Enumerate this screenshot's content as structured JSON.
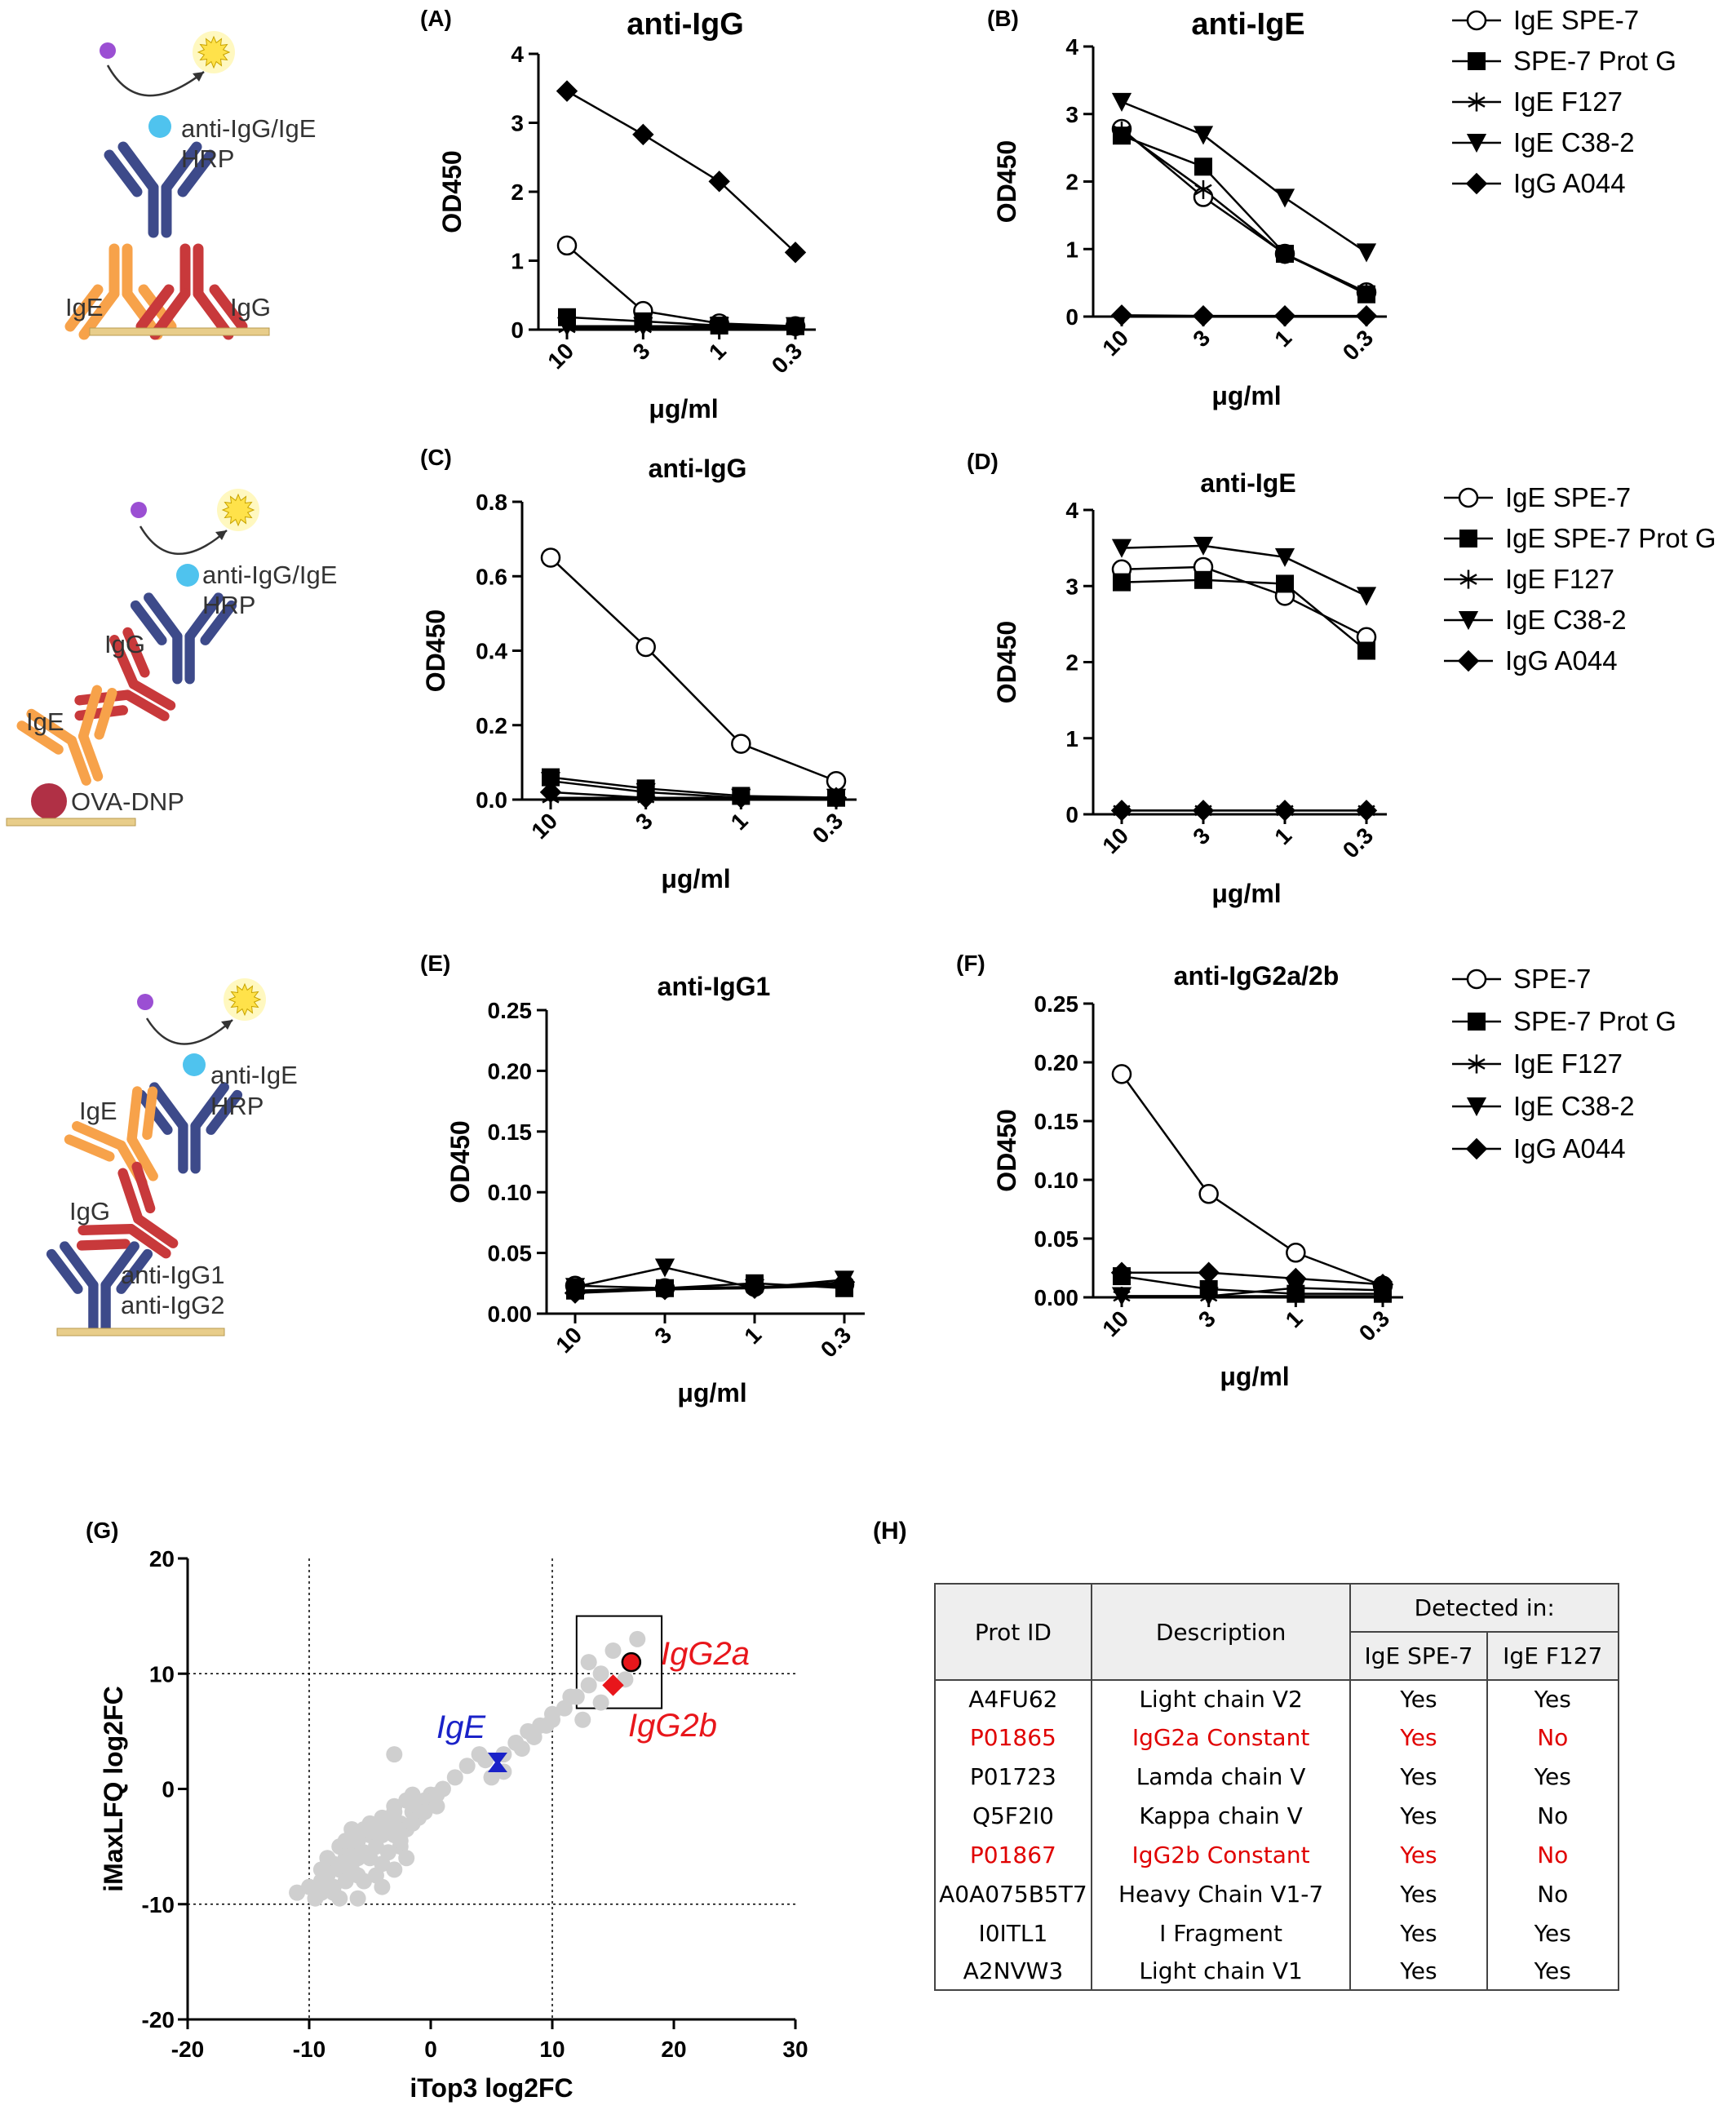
{
  "colors": {
    "red": "#e8161b",
    "blue": "#1a22c8",
    "grey": "#cfcfcf",
    "orange": "#f7a24a",
    "darkred": "#c8393b",
    "navy": "#3d4a8a",
    "cyan": "#4fc3ee",
    "purple": "#9b4fd3",
    "maroon": "#b03045",
    "gold": "#e8cd8a",
    "sun": "#ffe24a"
  },
  "schematics": [
    {
      "labels": [
        "anti-IgG/IgE",
        "HRP",
        "IgE",
        "IgG"
      ]
    },
    {
      "labels": [
        "anti-IgG/IgE",
        "HRP",
        "IgG",
        "IgE",
        "OVA-DNP"
      ]
    },
    {
      "labels": [
        "anti-IgE",
        "HRP",
        "IgE",
        "IgG",
        "anti-IgG1",
        "anti-IgG2"
      ]
    }
  ],
  "legends": [
    [
      "IgE SPE-7",
      "SPE-7 Prot G",
      "IgE F127",
      "IgE C38-2",
      "IgG A044"
    ],
    [
      "IgE SPE-7",
      "IgE SPE-7 Prot G",
      "IgE F127",
      "IgE C38-2",
      "IgG A044"
    ],
    [
      "SPE-7",
      "SPE-7 Prot G",
      "IgE F127",
      "IgE C38-2",
      "IgG A044"
    ]
  ],
  "chart_data": [
    {
      "panel": "(A)",
      "type": "line",
      "title": "anti-IgG",
      "xlabel": "μg/ml",
      "ylabel": "OD450",
      "categories": [
        "10",
        "3",
        "1",
        "0.3"
      ],
      "ylim": [
        0,
        4
      ],
      "yticks": [
        "0",
        "1",
        "2",
        "3",
        "4"
      ],
      "series": [
        {
          "name": "IgE SPE-7",
          "marker": "circle",
          "values": [
            1.22,
            0.27,
            0.09,
            0.05
          ]
        },
        {
          "name": "SPE-7 Prot G",
          "marker": "square",
          "values": [
            0.18,
            0.12,
            0.06,
            0.05
          ]
        },
        {
          "name": "IgE F127",
          "marker": "star",
          "values": [
            0.03,
            0.03,
            0.03,
            0.03
          ]
        },
        {
          "name": "IgE C38-2",
          "marker": "triangle",
          "values": [
            0.05,
            0.05,
            0.05,
            0.05
          ]
        },
        {
          "name": "IgG A044",
          "marker": "diamond",
          "values": [
            3.46,
            2.83,
            2.15,
            1.12
          ]
        }
      ]
    },
    {
      "panel": "(B)",
      "type": "line",
      "title": "anti-IgE",
      "xlabel": "μg/ml",
      "ylabel": "OD450",
      "categories": [
        "10",
        "3",
        "1",
        "0.3"
      ],
      "ylim": [
        0,
        4
      ],
      "yticks": [
        "0",
        "1",
        "2",
        "3",
        "4"
      ],
      "series": [
        {
          "name": "IgE SPE-7",
          "marker": "circle",
          "values": [
            2.78,
            1.77,
            0.93,
            0.36
          ]
        },
        {
          "name": "SPE-7 Prot G",
          "marker": "square",
          "values": [
            2.68,
            2.22,
            0.93,
            0.33
          ]
        },
        {
          "name": "IgE F127",
          "marker": "star",
          "values": [
            2.75,
            1.88,
            0.92,
            0.36
          ]
        },
        {
          "name": "IgE C38-2",
          "marker": "triangle",
          "values": [
            3.18,
            2.69,
            1.76,
            0.95
          ]
        },
        {
          "name": "IgG A044",
          "marker": "diamond",
          "values": [
            0.02,
            0.01,
            0.01,
            0.01
          ]
        }
      ]
    },
    {
      "panel": "(C)",
      "type": "line",
      "title": "anti-IgG",
      "xlabel": "μg/ml",
      "ylabel": "OD450",
      "categories": [
        "10",
        "3",
        "1",
        "0.3"
      ],
      "ylim": [
        0,
        0.8
      ],
      "yticks": [
        "0.0",
        "0.2",
        "0.4",
        "0.6",
        "0.8"
      ],
      "series": [
        {
          "name": "IgE SPE-7",
          "marker": "circle",
          "values": [
            0.65,
            0.41,
            0.15,
            0.05
          ]
        },
        {
          "name": "IgE SPE-7 Prot G",
          "marker": "square",
          "values": [
            0.06,
            0.03,
            0.01,
            0.005
          ]
        },
        {
          "name": "IgE F127",
          "marker": "star",
          "values": [
            0.005,
            0.005,
            0.005,
            0.005
          ]
        },
        {
          "name": "IgE C38-2",
          "marker": "triangle",
          "values": [
            0.05,
            0.02,
            0.005,
            0.005
          ]
        },
        {
          "name": "IgG A044",
          "marker": "diamond",
          "values": [
            0.02,
            0.005,
            0.005,
            0.005
          ]
        }
      ]
    },
    {
      "panel": "(D)",
      "type": "line",
      "title": "anti-IgE",
      "xlabel": "μg/ml",
      "ylabel": "OD450",
      "categories": [
        "10",
        "3",
        "1",
        "0.3"
      ],
      "ylim": [
        0,
        4
      ],
      "yticks": [
        "0",
        "1",
        "2",
        "3",
        "4"
      ],
      "series": [
        {
          "name": "IgE SPE-7",
          "marker": "circle",
          "values": [
            3.22,
            3.25,
            2.87,
            2.33
          ]
        },
        {
          "name": "IgE SPE-7 Prot G",
          "marker": "square",
          "values": [
            3.05,
            3.08,
            3.03,
            2.15
          ]
        },
        {
          "name": "IgE F127",
          "marker": "star",
          "values": [
            0.05,
            0.05,
            0.05,
            0.05
          ]
        },
        {
          "name": "IgE C38-2",
          "marker": "triangle",
          "values": [
            3.5,
            3.53,
            3.38,
            2.87
          ]
        },
        {
          "name": "IgG A044",
          "marker": "diamond",
          "values": [
            0.05,
            0.05,
            0.05,
            0.05
          ]
        }
      ]
    },
    {
      "panel": "(E)",
      "type": "line",
      "title": "anti-IgG1",
      "xlabel": "μg/ml",
      "ylabel": "OD450",
      "categories": [
        "10",
        "3",
        "1",
        "0.3"
      ],
      "ylim": [
        0,
        0.25
      ],
      "yticks": [
        "0.00",
        "0.05",
        "0.10",
        "0.15",
        "0.20",
        "0.25"
      ],
      "series": [
        {
          "name": "SPE-7",
          "marker": "circle",
          "values": [
            0.023,
            0.021,
            0.022,
            0.024
          ]
        },
        {
          "name": "SPE-7 Prot G",
          "marker": "square",
          "values": [
            0.019,
            0.021,
            0.025,
            0.021
          ]
        },
        {
          "name": "IgE F127",
          "marker": "star",
          "values": [
            0.018,
            0.02,
            0.021,
            0.023
          ]
        },
        {
          "name": "IgE C38-2",
          "marker": "triangle",
          "values": [
            0.022,
            0.038,
            0.021,
            0.028
          ]
        },
        {
          "name": "IgG A044",
          "marker": "diamond",
          "values": [
            0.017,
            0.02,
            0.021,
            0.026
          ]
        }
      ]
    },
    {
      "panel": "(F)",
      "type": "line",
      "title": "anti-IgG2a/2b",
      "xlabel": "μg/ml",
      "ylabel": "OD450",
      "categories": [
        "10",
        "3",
        "1",
        "0.3"
      ],
      "ylim": [
        0,
        0.25
      ],
      "yticks": [
        "0.00",
        "0.05",
        "0.10",
        "0.15",
        "0.20",
        "0.25"
      ],
      "series": [
        {
          "name": "SPE-7",
          "marker": "circle",
          "values": [
            0.19,
            0.088,
            0.038,
            0.01
          ]
        },
        {
          "name": "SPE-7 Prot G",
          "marker": "square",
          "values": [
            0.018,
            0.007,
            0.003,
            0.003
          ]
        },
        {
          "name": "IgE F127",
          "marker": "star",
          "values": [
            0.001,
            0.001,
            0.001,
            0.001
          ]
        },
        {
          "name": "IgE C38-2",
          "marker": "triangle",
          "values": [
            0.001,
            0.001,
            0.008,
            0.006
          ]
        },
        {
          "name": "IgG A044",
          "marker": "diamond",
          "values": [
            0.021,
            0.021,
            0.016,
            0.011
          ]
        }
      ]
    },
    {
      "panel": "(G)",
      "type": "scatter",
      "xlabel": "iTop3 log2FC",
      "ylabel": "iMaxLFQ log2FC",
      "xlim": [
        -20,
        30
      ],
      "ylim": [
        -20,
        20
      ],
      "xticks": [
        "-20",
        "-10",
        "0",
        "10",
        "20",
        "30"
      ],
      "yticks": [
        "-20",
        "-10",
        "0",
        "10",
        "20"
      ],
      "reference_lines": {
        "x": [
          -10,
          10
        ],
        "y": [
          -10,
          10
        ]
      },
      "box": {
        "x": [
          12,
          19
        ],
        "y": [
          7,
          15
        ]
      },
      "highlights": [
        {
          "label": "IgG2a",
          "x": 16.5,
          "y": 11,
          "marker": "circle",
          "color": "#e8161b"
        },
        {
          "label": "IgG2b",
          "x": 15,
          "y": 9,
          "marker": "diamond",
          "color": "#e8161b"
        },
        {
          "label": "IgE",
          "x": 5.5,
          "y": 2.3,
          "marker": "bowtie",
          "color": "#1a22c8"
        }
      ],
      "points": [
        [
          -11,
          -9
        ],
        [
          -10,
          -8.5
        ],
        [
          -9.5,
          -9.5
        ],
        [
          -9,
          -8
        ],
        [
          -8.5,
          -7.5
        ],
        [
          -8,
          -8.5
        ],
        [
          -8,
          -6.5
        ],
        [
          -7.5,
          -9.5
        ],
        [
          -7.5,
          -7
        ],
        [
          -7,
          -6
        ],
        [
          -7,
          -8
        ],
        [
          -6.5,
          -5
        ],
        [
          -6.5,
          -7
        ],
        [
          -6,
          -6
        ],
        [
          -6,
          -4.5
        ],
        [
          -5.5,
          -5.5
        ],
        [
          -5.5,
          -8
        ],
        [
          -5,
          -4
        ],
        [
          -5,
          -6
        ],
        [
          -4.5,
          -3.5
        ],
        [
          -4.5,
          -5
        ],
        [
          -4,
          -4
        ],
        [
          -4,
          -6.5
        ],
        [
          -3.5,
          -3
        ],
        [
          -3.5,
          -5.5
        ],
        [
          -3,
          -2
        ],
        [
          -3,
          -4
        ],
        [
          -2.5,
          -3
        ],
        [
          -2.5,
          -5
        ],
        [
          -2,
          -1
        ],
        [
          -2,
          -3.5
        ],
        [
          -1.5,
          -2
        ],
        [
          -1,
          -1.5
        ],
        [
          -1,
          -2.5
        ],
        [
          -0.5,
          -1
        ],
        [
          0,
          -0.5
        ],
        [
          0.5,
          -0.5
        ],
        [
          1,
          0
        ],
        [
          -3,
          3
        ],
        [
          -9,
          -9
        ],
        [
          -8,
          -9
        ],
        [
          -6,
          -9.5
        ],
        [
          -4,
          -8.5
        ],
        [
          -3,
          -7
        ],
        [
          -2,
          -6
        ],
        [
          -7.5,
          -5
        ],
        [
          -6.5,
          -3.5
        ],
        [
          -5,
          -3
        ],
        [
          -4,
          -2.5
        ],
        [
          -3,
          -1.5
        ],
        [
          3,
          2
        ],
        [
          4,
          3
        ],
        [
          5,
          1
        ],
        [
          6,
          3
        ],
        [
          7,
          4
        ],
        [
          8,
          5
        ],
        [
          9,
          5.5
        ],
        [
          10,
          6
        ],
        [
          11,
          7
        ],
        [
          12,
          8
        ],
        [
          13,
          9
        ],
        [
          14,
          10
        ],
        [
          15,
          12
        ],
        [
          17,
          13
        ],
        [
          13,
          11
        ],
        [
          14,
          7.5
        ],
        [
          10,
          6.5
        ],
        [
          11.5,
          8
        ],
        [
          12.5,
          6
        ],
        [
          16,
          9.5
        ],
        [
          6,
          1.5
        ],
        [
          4.5,
          2.5
        ],
        [
          7.5,
          3.5
        ],
        [
          8.5,
          4.5
        ],
        [
          9.5,
          5.5
        ],
        [
          -8.5,
          -6
        ],
        [
          -9,
          -7
        ],
        [
          -7,
          -4.5
        ],
        [
          -5.5,
          -3.5
        ],
        [
          -1.5,
          -3
        ],
        [
          -0.5,
          -2
        ],
        [
          0.5,
          -1.5
        ],
        [
          2,
          1
        ],
        [
          -4.5,
          -7.5
        ],
        [
          -6,
          -7.5
        ],
        [
          -2.5,
          -4.5
        ],
        [
          -1.5,
          -0.5
        ]
      ]
    }
  ],
  "table": {
    "label": "(H)",
    "headers": {
      "prot_id": "Prot ID",
      "description": "Description",
      "detected_in": "Detected in:",
      "col1": "IgE SPE-7",
      "col2": "IgE F127"
    },
    "rows": [
      {
        "id": "A4FU62",
        "desc": "Light chain V2",
        "c1": "Yes",
        "c2": "Yes",
        "red": false
      },
      {
        "id": "P01865",
        "desc": "IgG2a Constant",
        "c1": "Yes",
        "c2": "No",
        "red": true
      },
      {
        "id": "P01723",
        "desc": "Lamda chain V",
        "c1": "Yes",
        "c2": "Yes",
        "red": false
      },
      {
        "id": "Q5F2I0",
        "desc": "Kappa chain V",
        "c1": "Yes",
        "c2": "No",
        "red": false
      },
      {
        "id": "P01867",
        "desc": "IgG2b Constant",
        "c1": "Yes",
        "c2": "No",
        "red": true
      },
      {
        "id": "A0A075B5T7",
        "desc": "Heavy Chain V1-7",
        "c1": "Yes",
        "c2": "No",
        "red": false
      },
      {
        "id": "I0ITL1",
        "desc": "I Fragment",
        "c1": "Yes",
        "c2": "Yes",
        "red": false
      },
      {
        "id": "A2NVW3",
        "desc": "Light chain V1",
        "c1": "Yes",
        "c2": "Yes",
        "red": false
      }
    ]
  }
}
